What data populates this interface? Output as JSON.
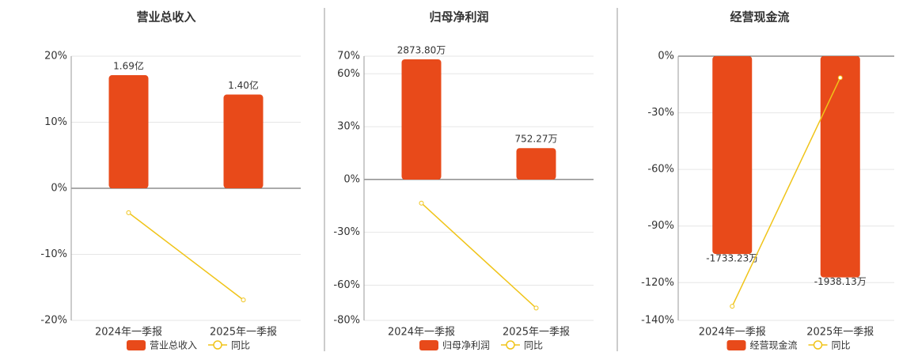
{
  "chart_data": [
    {
      "type": "bar",
      "title": "营业总收入",
      "categories": [
        "2024年一季报",
        "2025年一季报"
      ],
      "series": [
        {
          "name": "营业总收入",
          "color": "#e84a1a",
          "axis": "y2",
          "values": [
            1.69,
            1.4
          ],
          "value_labels": [
            "1.69亿",
            "1.40亿"
          ]
        },
        {
          "name": "同比",
          "type": "line",
          "color": "#f0c419",
          "values": [
            -3.7,
            -16.9
          ]
        }
      ],
      "ylim": [
        -20,
        20
      ],
      "yticks": [
        {
          "value": -20,
          "label": "-20%"
        },
        {
          "value": -10,
          "label": "-10%"
        },
        {
          "value": 0,
          "label": "0%"
        },
        {
          "value": 10,
          "label": "10%"
        },
        {
          "value": 20,
          "label": "20%"
        }
      ],
      "y2lim": [
        -1.974,
        1.974
      ],
      "grid": true
    },
    {
      "type": "bar",
      "title": "归母净利润",
      "categories": [
        "2024年一季报",
        "2025年一季报"
      ],
      "series": [
        {
          "name": "归母净利润",
          "color": "#e84a1a",
          "axis": "y2",
          "values": [
            2873.8,
            752.27
          ],
          "value_labels": [
            "2873.80万",
            "752.27万"
          ]
        },
        {
          "name": "同比",
          "type": "line",
          "color": "#f0c419",
          "values": [
            -13.4,
            -73.0
          ]
        }
      ],
      "ylim": [
        -80,
        70
      ],
      "yticks": [
        {
          "value": -80,
          "label": "-80%"
        },
        {
          "value": -60,
          "label": "-60%"
        },
        {
          "value": -30,
          "label": "-30%"
        },
        {
          "value": 0,
          "label": "0%"
        },
        {
          "value": 30,
          "label": "30%"
        },
        {
          "value": 60,
          "label": "60%"
        },
        {
          "value": 70,
          "label": "70%"
        }
      ],
      "y2lim": [
        -3365,
        2949
      ],
      "grid": true
    },
    {
      "type": "bar",
      "title": "经营现金流",
      "categories": [
        "2024年一季报",
        "2025年一季报"
      ],
      "series": [
        {
          "name": "经营现金流",
          "color": "#e84a1a",
          "axis": "y2",
          "values": [
            -1733.23,
            -1938.13
          ],
          "value_labels": [
            "-1733.23万",
            "-1938.13万"
          ]
        },
        {
          "name": "同比",
          "type": "line",
          "color": "#f0c419",
          "values": [
            -132.5,
            -11.4
          ]
        }
      ],
      "ylim": [
        -140,
        0
      ],
      "yticks": [
        {
          "value": -140,
          "label": "-140%"
        },
        {
          "value": -120,
          "label": "-120%"
        },
        {
          "value": -90,
          "label": "-90%"
        },
        {
          "value": -60,
          "label": "-60%"
        },
        {
          "value": -30,
          "label": "-30%"
        },
        {
          "value": 0,
          "label": "0%"
        }
      ],
      "y2lim": [
        -2315,
        0
      ],
      "grid": true
    }
  ]
}
